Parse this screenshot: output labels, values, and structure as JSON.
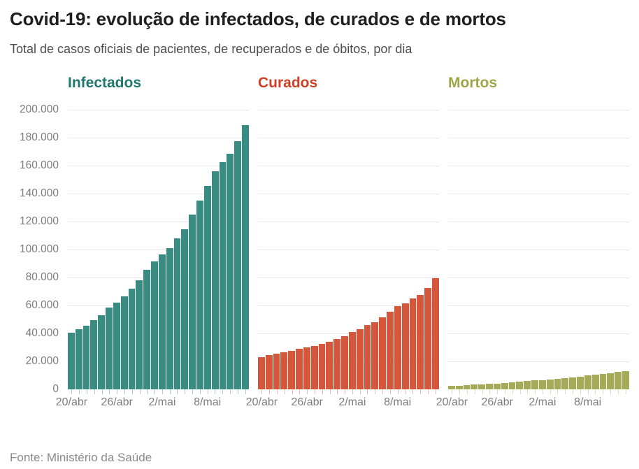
{
  "header": {
    "title": "Covid-19: evolução de infectados, de curados e de mortos",
    "subtitle": "Total de casos oficiais de pacientes, de recuperados e de óbitos, por dia"
  },
  "footer": {
    "source": "Fonte: Ministério da Saúde"
  },
  "colors": {
    "infectados_bar": "#398c82",
    "infectados_title": "#20776e",
    "curados_bar": "#d4573b",
    "curados_title": "#ce4126",
    "mortos_bar": "#a4aa57",
    "mortos_title": "#9ea549",
    "gridline": "#e6e6e6",
    "axis_text": "#7d7d7d",
    "title_text": "#1f1f1f",
    "subtitle_text": "#4d4d4d",
    "source_text": "#8a8a8a",
    "background": "#ffffff"
  },
  "chart_data": {
    "type": "bar",
    "layout": "three-small-multiples-shared-y",
    "title": "Covid-19: evolução de infectados, de curados e de mortos",
    "subtitle": "Total de casos oficiais de pacientes, de recuperados e de óbitos, por dia",
    "source": "Fonte: Ministério da Saúde",
    "grid": true,
    "ylim": [
      0,
      200000
    ],
    "y_tick_step": 20000,
    "y_tick_labels": [
      "200.000",
      "180.000",
      "160.000",
      "140.000",
      "120.000",
      "100.000",
      "80.000",
      "60.000",
      "40.000",
      "20.000",
      "0"
    ],
    "x_tick_labels": [
      "20/abr",
      "26/abr",
      "2/mai",
      "8/mai"
    ],
    "x_tick_indices": [
      0,
      6,
      12,
      18
    ],
    "categories": [
      "20/abr",
      "21/abr",
      "22/abr",
      "23/abr",
      "24/abr",
      "25/abr",
      "26/abr",
      "27/abr",
      "28/abr",
      "29/abr",
      "30/abr",
      "1/mai",
      "2/mai",
      "3/mai",
      "4/mai",
      "5/mai",
      "6/mai",
      "7/mai",
      "8/mai",
      "9/mai",
      "10/mai",
      "11/mai",
      "12/mai",
      "13/mai"
    ],
    "series": [
      {
        "name": "Infectados",
        "bar_color": "#398c82",
        "title_color": "#20776e",
        "values": [
          40581,
          43079,
          45757,
          49492,
          52995,
          58509,
          61888,
          66501,
          71886,
          78162,
          85380,
          91589,
          96559,
          101147,
          107780,
          114715,
          125218,
          135106,
          145328,
          155939,
          162699,
          168331,
          177589,
          188974
        ]
      },
      {
        "name": "Curados",
        "bar_color": "#d4573b",
        "title_color": "#ce4126",
        "values": [
          22991,
          24325,
          25318,
          26573,
          27655,
          29160,
          30152,
          31142,
          32544,
          34132,
          35935,
          38039,
          40937,
          42991,
          45815,
          48221,
          51370,
          55350,
          59297,
          61685,
          64957,
          67384,
          72597,
          79479
        ]
      },
      {
        "name": "Mortos",
        "bar_color": "#a4aa57",
        "title_color": "#9ea549",
        "values": [
          2575,
          2741,
          2906,
          3313,
          3670,
          4016,
          4205,
          4543,
          5017,
          5466,
          5901,
          6329,
          6750,
          7025,
          7321,
          7921,
          8536,
          9146,
          9897,
          10627,
          11123,
          11519,
          12400,
          13149
        ]
      }
    ]
  }
}
